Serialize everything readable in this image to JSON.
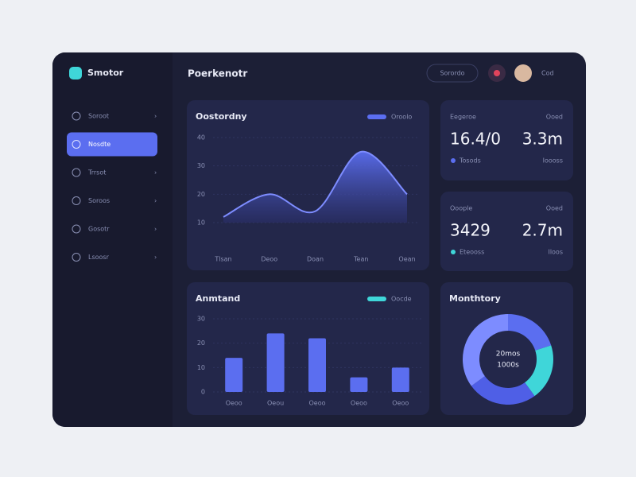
{
  "app": {
    "logo": "Smotor",
    "page_title": "Poerkenotr",
    "button": "Sorordo",
    "user": "Cod"
  },
  "sidebar": {
    "items": [
      "Soroot",
      "Nosdte",
      "Trrsot",
      "Soroos",
      "Gosotr",
      "Lsoosr"
    ],
    "active": 1
  },
  "stats": [
    {
      "label": "Eegeroe",
      "value": "16.4/0",
      "sub": "Tosods",
      "label2": "Ooed",
      "value2": "3.3m",
      "sub2": "Ioooss",
      "color": "#5b6ef0"
    },
    {
      "label": "Ooople",
      "value": "3429",
      "sub": "Eteooss",
      "label2": "Ooed",
      "value2": "2.7m",
      "sub2": "Iloos",
      "color": "#3fd6d9"
    }
  ],
  "chart_data": [
    {
      "type": "area",
      "title": "Oostordny",
      "legend": "Oroolo",
      "color": "#5b6ef0",
      "categories": [
        "Tlsan",
        "Deoo",
        "Doan",
        "Tean",
        "Oean"
      ],
      "values": [
        12,
        20,
        14,
        35,
        20
      ],
      "ylim": [
        10,
        40
      ],
      "yticks": [
        10,
        20,
        30,
        40
      ],
      "grid": true
    },
    {
      "type": "bar",
      "title": "Anmtand",
      "legend": "Oocde",
      "color": "#5b6ef0",
      "legend_color": "#3fd6d9",
      "categories": [
        "Oeoo",
        "Oeou",
        "Oeoo",
        "Oeoo",
        "Oeoo"
      ],
      "values": [
        14,
        24,
        22,
        6,
        10
      ],
      "ylim": [
        0,
        30
      ],
      "yticks": [
        0,
        10,
        20,
        30
      ],
      "grid": true
    },
    {
      "type": "donut",
      "title": "Monthtory",
      "center": [
        "20mos",
        "1000s"
      ],
      "values": [
        20,
        20,
        25,
        35
      ],
      "colors": [
        "#5b6ef0",
        "#3fd6d9",
        "#4f5fe6",
        "#7d8cff"
      ]
    }
  ]
}
